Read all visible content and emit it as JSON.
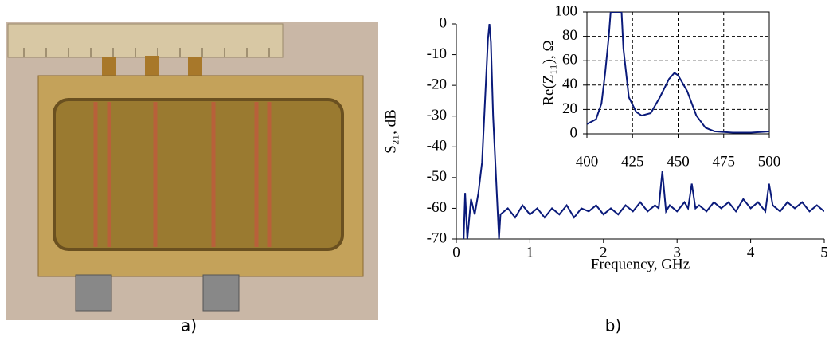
{
  "panel_labels": [
    "a)",
    "b)"
  ],
  "chart_data": [
    {
      "type": "line",
      "xlabel": "Frequency, GHz",
      "ylabel": "S₂₁, dB",
      "xlim": [
        0,
        5
      ],
      "xticks": [
        0,
        1,
        2,
        3,
        4,
        5
      ],
      "ylim": [
        -70,
        0
      ],
      "yticks": [
        0,
        -10,
        -20,
        -30,
        -40,
        -50,
        -60,
        -70
      ],
      "grid": false,
      "x": [
        0.1,
        0.12,
        0.15,
        0.2,
        0.25,
        0.3,
        0.35,
        0.4,
        0.43,
        0.45,
        0.47,
        0.5,
        0.55,
        0.58,
        0.6,
        0.7,
        0.8,
        0.9,
        1.0,
        1.1,
        1.2,
        1.3,
        1.4,
        1.5,
        1.6,
        1.7,
        1.8,
        1.9,
        2.0,
        2.1,
        2.2,
        2.3,
        2.4,
        2.5,
        2.6,
        2.7,
        2.75,
        2.8,
        2.85,
        2.9,
        3.0,
        3.1,
        3.15,
        3.2,
        3.25,
        3.3,
        3.4,
        3.5,
        3.6,
        3.7,
        3.8,
        3.9,
        4.0,
        4.1,
        4.2,
        4.25,
        4.3,
        4.4,
        4.5,
        4.6,
        4.7,
        4.8,
        4.9,
        5.0
      ],
      "series": [
        {
          "color": "#0a1a7a",
          "values": [
            -70,
            -55,
            -70,
            -57,
            -62,
            -55,
            -45,
            -20,
            -5,
            0,
            -6,
            -30,
            -55,
            -70,
            -62,
            -60,
            -63,
            -59,
            -62,
            -60,
            -63,
            -60,
            -62,
            -59,
            -63,
            -60,
            -61,
            -59,
            -62,
            -60,
            -62,
            -59,
            -61,
            -58,
            -61,
            -59,
            -60,
            -48,
            -61,
            -59,
            -61,
            -58,
            -60,
            -52,
            -60,
            -59,
            -61,
            -58,
            -60,
            -58,
            -61,
            -57,
            -60,
            -58,
            -61,
            -52,
            -59,
            -61,
            -58,
            -60,
            -58,
            -61,
            -59,
            -61
          ]
        }
      ]
    },
    {
      "type": "line",
      "ylabel": "Re(Z₁₁), Ω",
      "xlim": [
        400,
        500
      ],
      "xticks": [
        400,
        425,
        450,
        475,
        500
      ],
      "ylim": [
        0,
        100
      ],
      "yticks": [
        0,
        20,
        40,
        60,
        80,
        100
      ],
      "grid": true,
      "x": [
        400,
        405,
        408,
        410,
        412,
        413,
        419,
        420,
        423,
        427,
        430,
        435,
        440,
        445,
        448,
        450,
        455,
        460,
        465,
        470,
        480,
        490,
        500
      ],
      "series": [
        {
          "color": "#0a1a7a",
          "values": [
            8,
            12,
            25,
            50,
            80,
            100,
            100,
            70,
            30,
            18,
            15,
            17,
            30,
            45,
            50,
            48,
            35,
            15,
            5,
            2,
            1,
            1,
            2
          ]
        }
      ]
    }
  ]
}
